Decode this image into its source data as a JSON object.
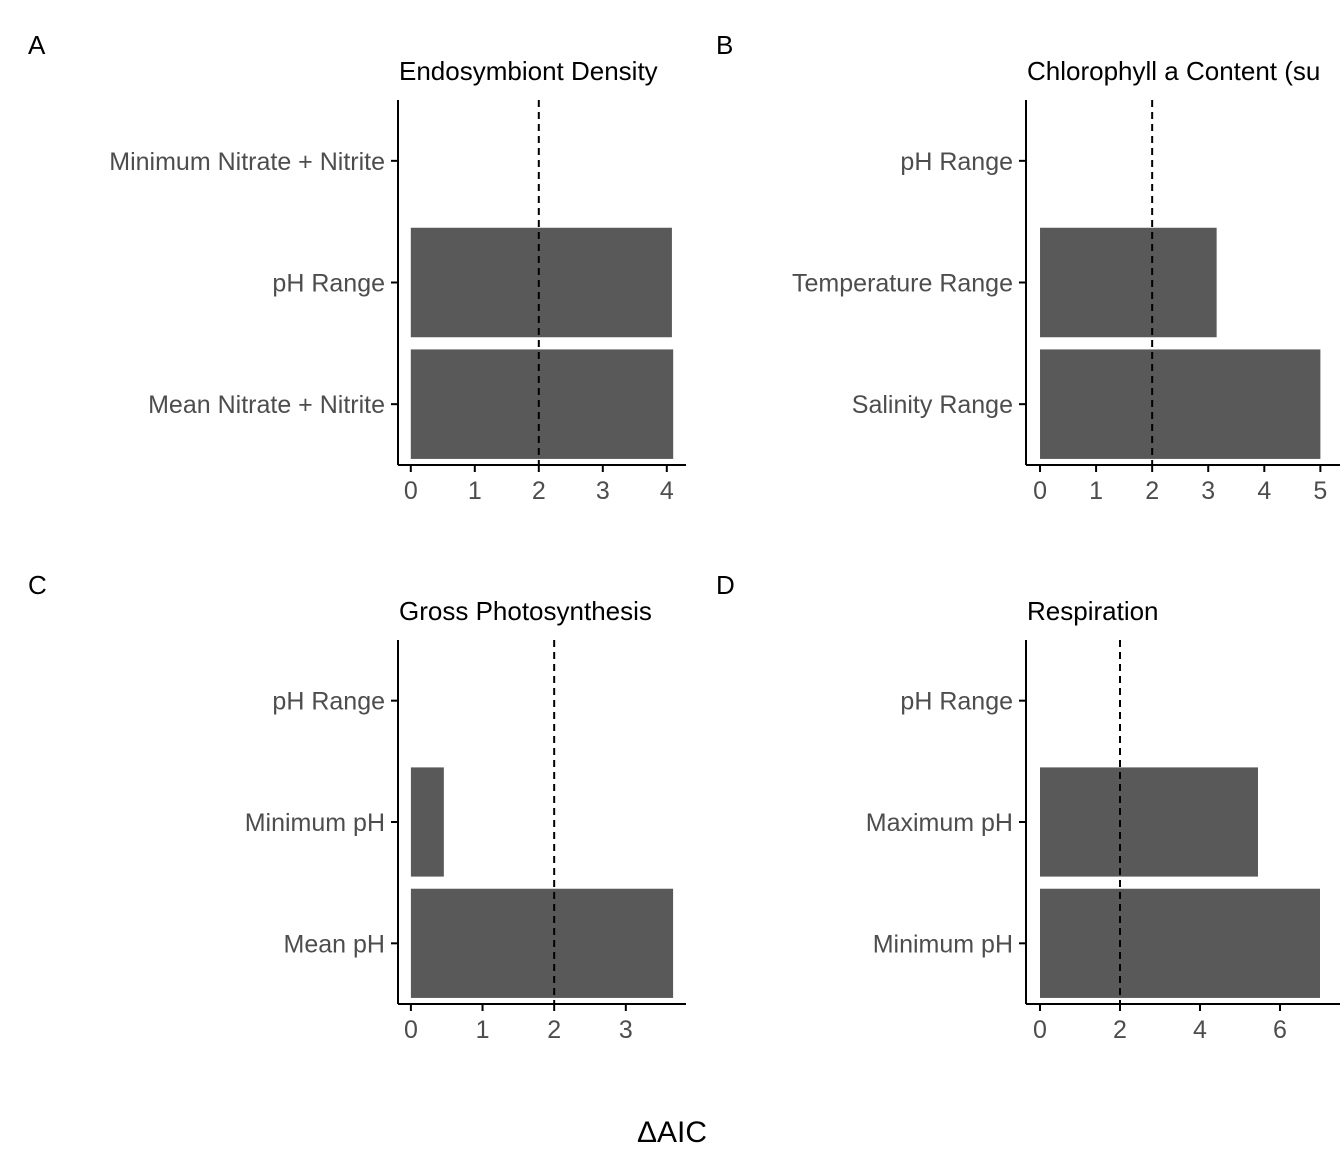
{
  "xlabel": "ΔAIC",
  "colors": {
    "bar": "#595959",
    "axis": "#000000",
    "tick_text": "#4d4d4d",
    "reference_line": "#000000"
  },
  "chart_data": [
    {
      "type": "bar",
      "orientation": "horizontal",
      "tag": "A",
      "title": "Endosymbiont Density",
      "categories": [
        "Mean Nitrate + Nitrite",
        "pH Range",
        "Minimum Nitrate + Nitrite"
      ],
      "values": [
        4.1,
        4.08,
        0
      ],
      "xlim": [
        -0.2,
        4.3
      ],
      "xticks": [
        "0",
        "1",
        "2",
        "3",
        "4"
      ],
      "xtick_values": [
        0,
        1,
        2,
        3,
        4
      ],
      "reference_line": 2
    },
    {
      "type": "bar",
      "orientation": "horizontal",
      "tag": "B",
      "title": "Chlorophyll a Content (su",
      "categories": [
        "Salinity Range",
        "Temperature Range",
        "pH Range"
      ],
      "values": [
        5.0,
        3.15,
        0
      ],
      "xlim": [
        -0.25,
        5.35
      ],
      "xticks": [
        "0",
        "1",
        "2",
        "3",
        "4",
        "5"
      ],
      "xtick_values": [
        0,
        1,
        2,
        3,
        4,
        5
      ],
      "reference_line": 2
    },
    {
      "type": "bar",
      "orientation": "horizontal",
      "tag": "C",
      "title": "Gross Photosynthesis",
      "categories": [
        "Mean pH",
        "Minimum pH",
        "pH Range"
      ],
      "values": [
        3.66,
        0.46,
        0
      ],
      "xlim": [
        -0.18,
        3.84
      ],
      "xticks": [
        "0",
        "1",
        "2",
        "3"
      ],
      "xtick_values": [
        0,
        1,
        2,
        3
      ],
      "reference_line": 2
    },
    {
      "type": "bar",
      "orientation": "horizontal",
      "tag": "D",
      "title": "Respiration",
      "categories": [
        "Minimum pH",
        "Maximum pH",
        "pH Range"
      ],
      "values": [
        7.0,
        5.45,
        0
      ],
      "xlim": [
        -0.35,
        7.5
      ],
      "xticks": [
        "0",
        "2",
        "4",
        "6"
      ],
      "xtick_values": [
        0,
        2,
        4,
        6
      ],
      "reference_line": 2
    }
  ]
}
